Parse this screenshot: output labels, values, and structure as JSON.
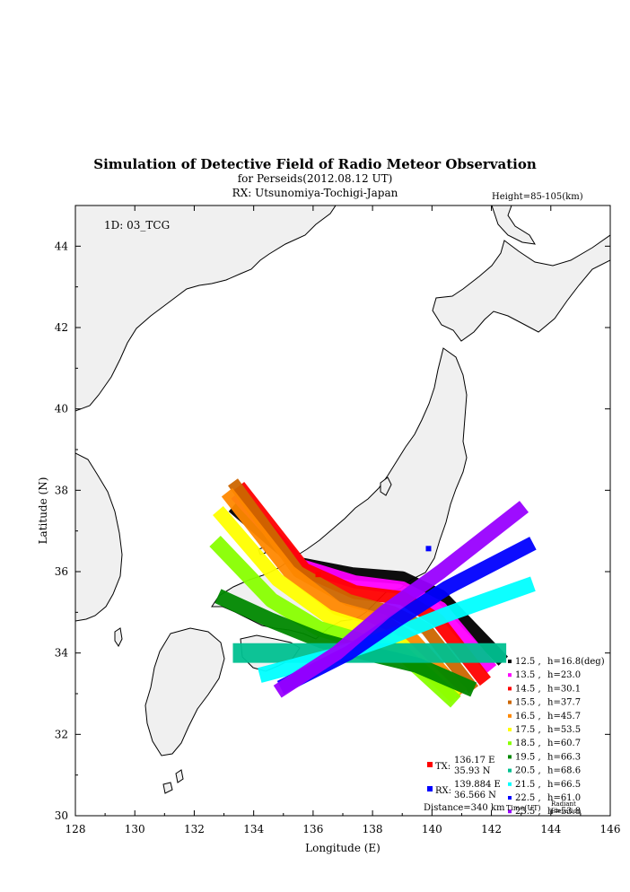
{
  "title": "Simulation of Detective Field of Radio Meteor Observation",
  "subtitle1": "for Perseids(2012.08.12 UT)",
  "subtitle2": "RX: Utsunomiya-Tochigi-Japan",
  "height_note": "Height=85-105(km)",
  "id_label": "1D: 03_TCG",
  "chart_data": {
    "type": "scatter",
    "xlabel": "Longitude (E)",
    "ylabel": "Latitude (N)",
    "xlim": [
      128,
      146
    ],
    "ylim": [
      30,
      45
    ],
    "xticks": [
      "128",
      "130",
      "132",
      "134",
      "136",
      "138",
      "140",
      "142",
      "144",
      "146"
    ],
    "yticks": [
      "30",
      "32",
      "34",
      "36",
      "38",
      "40",
      "42",
      "44"
    ],
    "tx": {
      "label": "TX:",
      "lon_text": "136.17 E",
      "lat_text": "35.93 N",
      "lon": 136.17,
      "lat": 35.93,
      "color": "#ff0000"
    },
    "rx": {
      "label": "RX:",
      "lon_text": "139.884 E",
      "lat_text": "36.566 N",
      "lon": 139.884,
      "lat": 36.566,
      "color": "#0000ff"
    },
    "distance": "Distance=340 km",
    "legend_footer": {
      "time": "Time(UT)",
      "radiant1": "Radiant",
      "radiant2": "Elevation"
    },
    "series": [
      {
        "time": "12.5",
        "h": "16.8(deg)",
        "color": "#000000",
        "path": [
          [
            133.3,
            37.6
          ],
          [
            135.5,
            36.2
          ],
          [
            137.3,
            35.95
          ],
          [
            139.0,
            35.85
          ],
          [
            140.3,
            35.4
          ],
          [
            142.4,
            33.8
          ]
        ],
        "width": 0.32
      },
      {
        "time": "13.5",
        "h": "23.0",
        "color": "#ff00ff",
        "path": [
          [
            133.4,
            37.9
          ],
          [
            135.6,
            36.15
          ],
          [
            137.4,
            35.75
          ],
          [
            139.0,
            35.6
          ],
          [
            140.3,
            35.1
          ],
          [
            142.0,
            33.6
          ]
        ],
        "width": 0.32
      },
      {
        "time": "14.5",
        "h": "30.1",
        "color": "#ff0000",
        "path": [
          [
            133.5,
            38.1
          ],
          [
            135.7,
            36.05
          ],
          [
            137.4,
            35.5
          ],
          [
            139.0,
            35.35
          ],
          [
            140.2,
            34.8
          ],
          [
            141.8,
            33.3
          ]
        ],
        "width": 0.34
      },
      {
        "time": "15.5",
        "h": "37.7",
        "color": "#cc6600",
        "path": [
          [
            133.3,
            38.2
          ],
          [
            135.5,
            36.0
          ],
          [
            137.2,
            35.3
          ],
          [
            138.7,
            35.0
          ],
          [
            139.8,
            34.6
          ],
          [
            141.4,
            33.1
          ]
        ],
        "width": 0.3
      },
      {
        "time": "16.5",
        "h": "45.7",
        "color": "#ff8800",
        "path": [
          [
            133.1,
            37.95
          ],
          [
            135.2,
            36.0
          ],
          [
            136.8,
            35.1
          ],
          [
            138.3,
            34.8
          ],
          [
            139.4,
            34.3
          ],
          [
            141.0,
            33.0
          ]
        ],
        "width": 0.34
      },
      {
        "time": "17.5",
        "h": "53.5",
        "color": "#ffff00",
        "path": [
          [
            132.8,
            37.5
          ],
          [
            134.8,
            35.8
          ],
          [
            136.5,
            34.9
          ],
          [
            137.8,
            34.6
          ],
          [
            139.0,
            34.2
          ],
          [
            140.8,
            32.9
          ]
        ],
        "width": 0.34
      },
      {
        "time": "18.5",
        "h": "60.7",
        "color": "#88ff00",
        "path": [
          [
            132.7,
            36.75
          ],
          [
            134.6,
            35.3
          ],
          [
            136.2,
            34.6
          ],
          [
            137.6,
            34.3
          ],
          [
            139.0,
            34.0
          ],
          [
            140.8,
            32.8
          ]
        ],
        "width": 0.38
      },
      {
        "time": "19.5",
        "h": "66.3",
        "color": "#008800",
        "path": [
          [
            132.8,
            35.4
          ],
          [
            134.6,
            34.8
          ],
          [
            136.3,
            34.3
          ],
          [
            137.8,
            34.0
          ],
          [
            139.5,
            33.7
          ],
          [
            141.4,
            33.1
          ]
        ],
        "width": 0.38
      },
      {
        "time": "20.5",
        "h": "68.6",
        "color": "#00c090",
        "path": [
          [
            133.3,
            34.0
          ],
          [
            136.0,
            34.0
          ],
          [
            138.5,
            34.0
          ],
          [
            142.5,
            34.0
          ]
        ],
        "width": 0.48
      },
      {
        "time": "21.5",
        "h": "66.5",
        "color": "#00ffff",
        "path": [
          [
            134.2,
            33.45
          ],
          [
            136.8,
            33.95
          ],
          [
            138.6,
            34.4
          ],
          [
            140.5,
            34.95
          ],
          [
            143.4,
            35.7
          ]
        ],
        "width": 0.38
      },
      {
        "time": "22.5",
        "h": "61.0",
        "color": "#0000ff",
        "path": [
          [
            134.9,
            33.15
          ],
          [
            137.2,
            34.0
          ],
          [
            138.8,
            34.8
          ],
          [
            140.5,
            35.6
          ],
          [
            143.4,
            36.7
          ]
        ],
        "width": 0.36
      },
      {
        "time": "23.5",
        "h": "53.8",
        "color": "#9900ff",
        "path": [
          [
            134.8,
            33.05
          ],
          [
            136.8,
            34.0
          ],
          [
            138.4,
            35.0
          ],
          [
            140.3,
            36.0
          ],
          [
            143.1,
            37.6
          ]
        ],
        "width": 0.36
      }
    ]
  }
}
